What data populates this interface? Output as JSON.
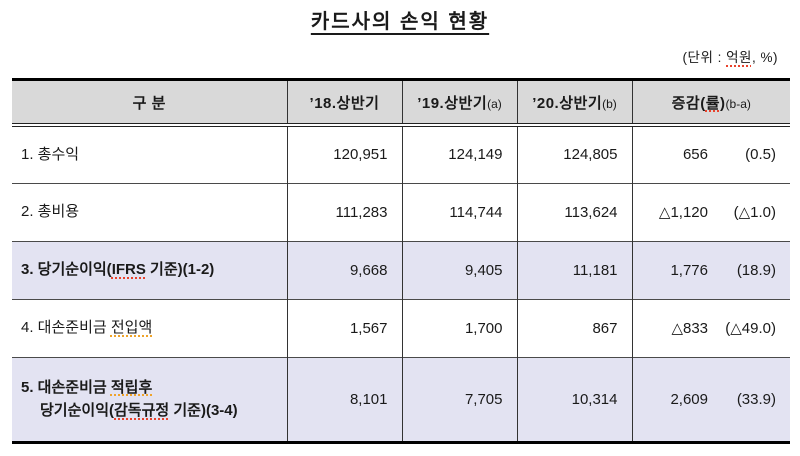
{
  "title": "카드사의 손익 현황",
  "unit_note": {
    "prefix": "(단위 : ",
    "unit": "억원",
    "suffix": ", %)"
  },
  "colors": {
    "header_bg": "#d9d9d9",
    "highlight_row_bg": "#e3e3f2",
    "border": "#000000",
    "spellcheck_red": "#e8432d",
    "spellcheck_orange": "#efa32a"
  },
  "table": {
    "columns": [
      {
        "segments": [
          {
            "text": "구 분"
          }
        ],
        "sub": ""
      },
      {
        "segments": [
          {
            "text": "’18.상반기"
          }
        ],
        "sub": ""
      },
      {
        "segments": [
          {
            "text": "’19.상반기"
          }
        ],
        "sub": "(a)"
      },
      {
        "segments": [
          {
            "text": "’20.상반기"
          }
        ],
        "sub": "(b)"
      },
      {
        "segments": [
          {
            "text": "증감("
          },
          {
            "text": "률",
            "sq": "red"
          },
          {
            "text": ")"
          }
        ],
        "sub": "(b-a)"
      }
    ],
    "rows": [
      {
        "label_lines": [
          [
            {
              "text": "1. 총수익"
            }
          ]
        ],
        "bold": false,
        "highlight": false,
        "values": [
          "120,951",
          "124,149",
          "124,805"
        ],
        "change": {
          "amount": "656",
          "pct": "(0.5)"
        }
      },
      {
        "label_lines": [
          [
            {
              "text": "2. 총비용"
            }
          ]
        ],
        "bold": false,
        "highlight": false,
        "values": [
          "111,283",
          "114,744",
          "113,624"
        ],
        "change": {
          "amount": "△1,120",
          "pct": "(△1.0)"
        }
      },
      {
        "label_lines": [
          [
            {
              "text": "3. 당기순이익("
            },
            {
              "text": "IFRS",
              "sq": "red"
            },
            {
              "text": " 기준)(1-2)"
            }
          ]
        ],
        "bold": true,
        "highlight": true,
        "values": [
          "9,668",
          "9,405",
          "11,181"
        ],
        "change": {
          "amount": "1,776",
          "pct": "(18.9)"
        }
      },
      {
        "label_lines": [
          [
            {
              "text": "4. 대손준비금 "
            },
            {
              "text": "전입액",
              "sq": "orange"
            }
          ]
        ],
        "bold": false,
        "highlight": false,
        "values": [
          "1,567",
          "1,700",
          "867"
        ],
        "change": {
          "amount": "△833",
          "pct": "(△49.0)"
        }
      },
      {
        "label_lines": [
          [
            {
              "text": "5. 대손준비금 "
            },
            {
              "text": "적립후",
              "sq": "orange"
            }
          ],
          [
            {
              "text": "당기순이익("
            },
            {
              "text": "감독규정",
              "sq": "red"
            },
            {
              "text": " 기준)(3-4)"
            }
          ]
        ],
        "bold": true,
        "highlight": true,
        "values": [
          "8,101",
          "7,705",
          "10,314"
        ],
        "change": {
          "amount": "2,609",
          "pct": "(33.9)"
        }
      }
    ]
  }
}
